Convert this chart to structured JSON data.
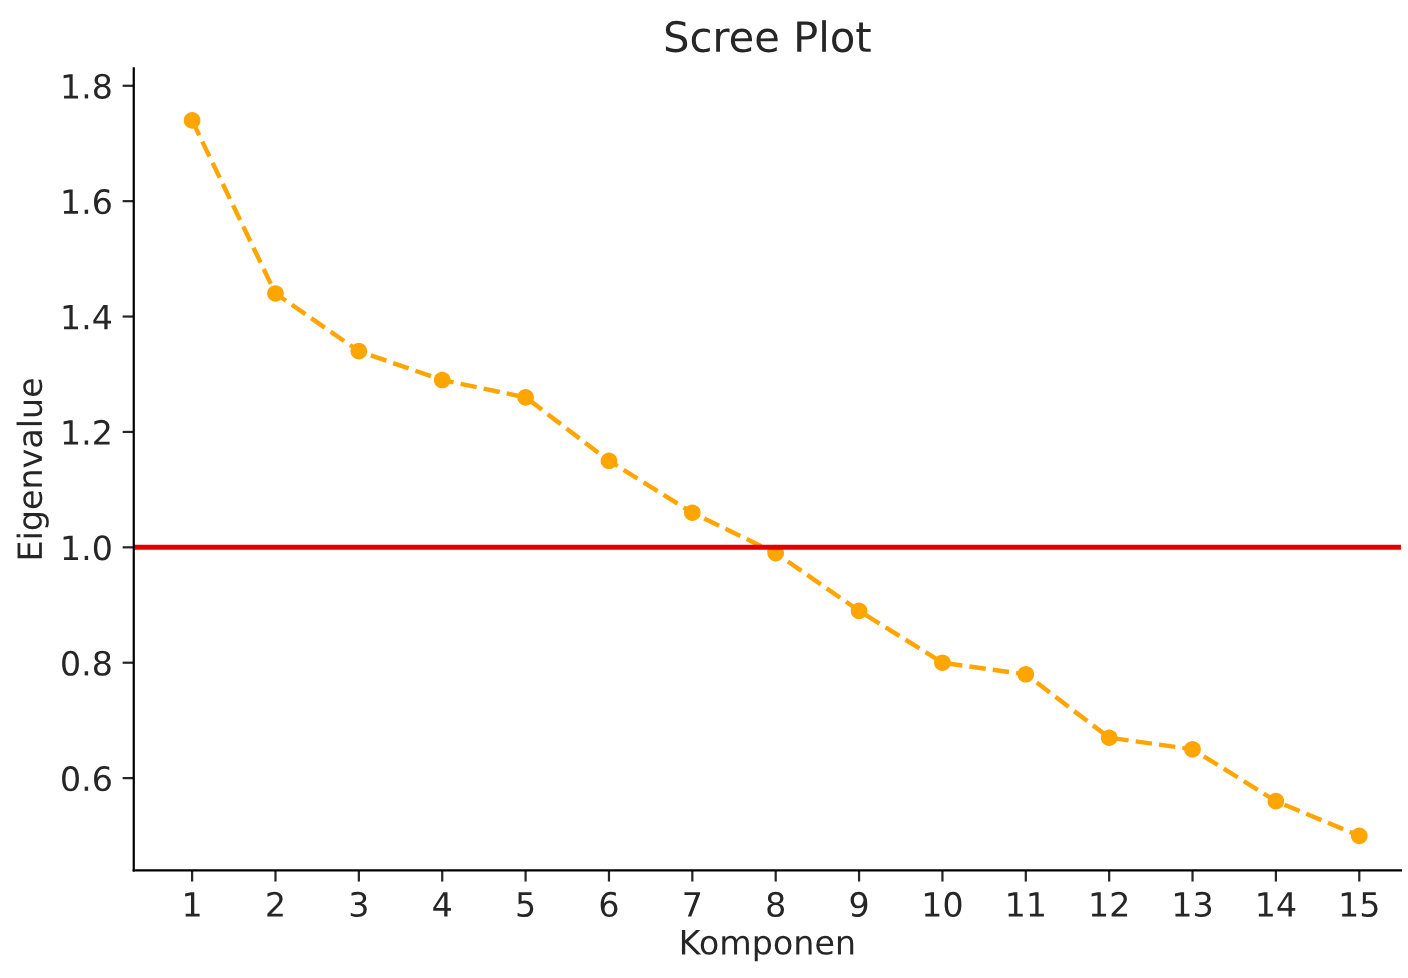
{
  "chart_data": {
    "type": "line",
    "title": "Scree Plot",
    "xlabel": "Komponen",
    "ylabel": "Eigenvalue",
    "x": [
      1,
      2,
      3,
      4,
      5,
      6,
      7,
      8,
      9,
      10,
      11,
      12,
      13,
      14,
      15
    ],
    "series": [
      {
        "color": "#ffa500",
        "values": [
          1.74,
          1.44,
          1.34,
          1.29,
          1.26,
          1.15,
          1.06,
          0.99,
          0.89,
          0.8,
          0.78,
          0.67,
          0.65,
          0.56,
          0.5
        ]
      }
    ],
    "marker": "circle",
    "line_style": "dashed",
    "xlim": [
      0.3,
      15.5
    ],
    "xticks": [
      1,
      2,
      3,
      4,
      5,
      6,
      7,
      8,
      9,
      10,
      11,
      12,
      13,
      14,
      15
    ],
    "ylim": [
      0.44,
      1.83
    ],
    "yticks": [
      {
        "value": 0.6,
        "label": "0.6"
      },
      {
        "value": 0.8,
        "label": "0.8"
      },
      {
        "value": 1.0,
        "label": "1.0"
      },
      {
        "value": 1.2,
        "label": "1.2"
      },
      {
        "value": 1.4,
        "label": "1.4"
      },
      {
        "value": 1.6,
        "label": "1.6"
      },
      {
        "value": 1.8,
        "label": "1.8"
      }
    ],
    "ref_lines": [
      {
        "axis": "y",
        "value": 1.0,
        "color": "#e00000",
        "line_style": "solid"
      }
    ],
    "grid": false,
    "legend": false
  }
}
